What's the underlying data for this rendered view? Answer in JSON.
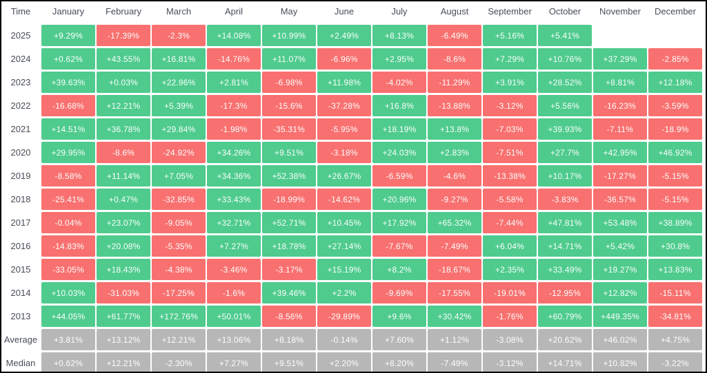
{
  "colors": {
    "positive": "#4ECB8D",
    "negative": "#F8706F",
    "summary": "#B7B7B7",
    "label_text": "#474D57",
    "cell_text": "#FCFEFD",
    "background": "#FFFFFF"
  },
  "chart_data": {
    "type": "heatmap",
    "corner_label": "Time",
    "columns": [
      "January",
      "February",
      "March",
      "April",
      "May",
      "June",
      "July",
      "August",
      "September",
      "October",
      "November",
      "December"
    ],
    "rows": [
      {
        "label": "2025",
        "kind": "year",
        "values": [
          "+9.29%",
          "-17.39%",
          "-2.3%",
          "+14.08%",
          "+10.99%",
          "+2.49%",
          "+8.13%",
          "-6.49%",
          "+5.16%",
          "+5.41%",
          null,
          null
        ]
      },
      {
        "label": "2024",
        "kind": "year",
        "values": [
          "+0.62%",
          "+43.55%",
          "+16.81%",
          "-14.76%",
          "+11.07%",
          "-6.96%",
          "+2.95%",
          "-8.6%",
          "+7.29%",
          "+10.76%",
          "+37.29%",
          "-2.85%"
        ]
      },
      {
        "label": "2023",
        "kind": "year",
        "values": [
          "+39.63%",
          "+0.03%",
          "+22.96%",
          "+2.81%",
          "-6.98%",
          "+11.98%",
          "-4.02%",
          "-11.29%",
          "+3.91%",
          "+28.52%",
          "+8.81%",
          "+12.18%"
        ]
      },
      {
        "label": "2022",
        "kind": "year",
        "values": [
          "-16.68%",
          "+12.21%",
          "+5.39%",
          "-17.3%",
          "-15.6%",
          "-37.28%",
          "+16.8%",
          "-13.88%",
          "-3.12%",
          "+5.56%",
          "-16.23%",
          "-3.59%"
        ]
      },
      {
        "label": "2021",
        "kind": "year",
        "values": [
          "+14.51%",
          "+36.78%",
          "+29.84%",
          "-1.98%",
          "-35.31%",
          "-5.95%",
          "+18.19%",
          "+13.8%",
          "-7.03%",
          "+39.93%",
          "-7.11%",
          "-18.9%"
        ]
      },
      {
        "label": "2020",
        "kind": "year",
        "values": [
          "+29.95%",
          "-8.6%",
          "-24.92%",
          "+34.26%",
          "+9.51%",
          "-3.18%",
          "+24.03%",
          "+2.83%",
          "-7.51%",
          "+27.7%",
          "+42.95%",
          "+46.92%"
        ]
      },
      {
        "label": "2019",
        "kind": "year",
        "values": [
          "-8.58%",
          "+11.14%",
          "+7.05%",
          "+34.36%",
          "+52.38%",
          "+26.67%",
          "-6.59%",
          "-4.6%",
          "-13.38%",
          "+10.17%",
          "-17.27%",
          "-5.15%"
        ]
      },
      {
        "label": "2018",
        "kind": "year",
        "values": [
          "-25.41%",
          "+0.47%",
          "-32.85%",
          "+33.43%",
          "-18.99%",
          "-14.62%",
          "+20.96%",
          "-9.27%",
          "-5.58%",
          "-3.83%",
          "-36.57%",
          "-5.15%"
        ]
      },
      {
        "label": "2017",
        "kind": "year",
        "values": [
          "-0.04%",
          "+23.07%",
          "-9.05%",
          "+32.71%",
          "+52.71%",
          "+10.45%",
          "+17.92%",
          "+65.32%",
          "-7.44%",
          "+47.81%",
          "+53.48%",
          "+38.89%"
        ]
      },
      {
        "label": "2016",
        "kind": "year",
        "values": [
          "-14.83%",
          "+20.08%",
          "-5.35%",
          "+7.27%",
          "+18.78%",
          "+27.14%",
          "-7.67%",
          "-7.49%",
          "+6.04%",
          "+14.71%",
          "+5.42%",
          "+30.8%"
        ]
      },
      {
        "label": "2015",
        "kind": "year",
        "values": [
          "-33.05%",
          "+18.43%",
          "-4.38%",
          "-3.46%",
          "-3.17%",
          "+15.19%",
          "+8.2%",
          "-18.67%",
          "+2.35%",
          "+33.49%",
          "+19.27%",
          "+13.83%"
        ]
      },
      {
        "label": "2014",
        "kind": "year",
        "values": [
          "+10.03%",
          "-31.03%",
          "-17.25%",
          "-1.6%",
          "+39.46%",
          "+2.2%",
          "-9.69%",
          "-17.55%",
          "-19.01%",
          "-12.95%",
          "+12.82%",
          "-15.11%"
        ]
      },
      {
        "label": "2013",
        "kind": "year",
        "values": [
          "+44.05%",
          "+61.77%",
          "+172.76%",
          "+50.01%",
          "-8.56%",
          "-29.89%",
          "+9.6%",
          "+30.42%",
          "-1.76%",
          "+60.79%",
          "+449.35%",
          "-34.81%"
        ]
      },
      {
        "label": "Average",
        "kind": "summary",
        "values": [
          "+3.81%",
          "+13.12%",
          "+12.21%",
          "+13.06%",
          "+8.18%",
          "-0.14%",
          "+7.60%",
          "+1.12%",
          "-3.08%",
          "+20.62%",
          "+46.02%",
          "+4.75%"
        ]
      },
      {
        "label": "Median",
        "kind": "summary",
        "values": [
          "+0.62%",
          "+12.21%",
          "-2.30%",
          "+7.27%",
          "+9.51%",
          "+2.20%",
          "+8.20%",
          "-7.49%",
          "-3.12%",
          "+14.71%",
          "+10.82%",
          "-3.22%"
        ]
      }
    ]
  }
}
